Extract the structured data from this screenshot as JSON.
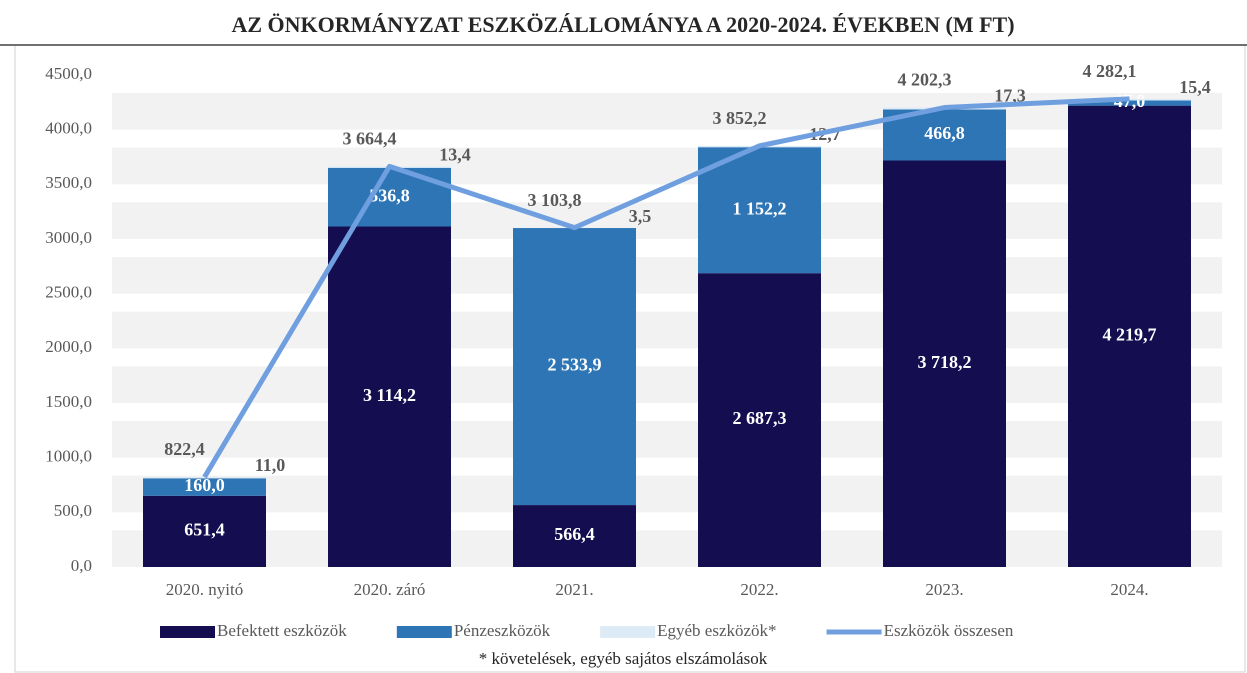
{
  "chart_data": {
    "type": "bar",
    "stacked": true,
    "title": "AZ ÖNKORMÁNYZAT ESZKÖZÁLLOMÁNYA A 2020-2024. ÉVEKBEN (M FT)",
    "categories": [
      "2020. nyitó",
      "2020. záró",
      "2021.",
      "2022.",
      "2023.",
      "2024."
    ],
    "series": [
      {
        "name": "Befektett eszközök",
        "color": "#140d50",
        "values": [
          651.4,
          3114.2,
          566.4,
          2687.3,
          3718.2,
          4219.7
        ],
        "value_labels": [
          "651,4",
          "3 114,2",
          "566,4",
          "2 687,3",
          "3 718,2",
          "4 219,7"
        ]
      },
      {
        "name": "Pénzeszközök",
        "color": "#2e75b6",
        "values": [
          160.0,
          536.8,
          2533.9,
          1152.2,
          466.8,
          47.0
        ],
        "value_labels": [
          "160,0",
          "536,8",
          "2 533,9",
          "1 152,2",
          "466,8",
          "47,0"
        ]
      },
      {
        "name": "Egyéb eszközök*",
        "color": "#ddebf7",
        "values": [
          11.0,
          13.4,
          3.5,
          12.7,
          17.3,
          15.4
        ],
        "value_labels": [
          "11,0",
          "13,4",
          "3,5",
          "12,7",
          "17,3",
          "15,4"
        ]
      },
      {
        "name": "Eszközök összesen",
        "color": "#709fe0",
        "type": "line",
        "values": [
          822.4,
          3664.4,
          3103.8,
          3852.2,
          4202.3,
          4282.1
        ],
        "value_labels": [
          "822,4",
          "3 664,4",
          "3 103,8",
          "3 852,2",
          "4 202,3",
          "4 282,1"
        ]
      }
    ],
    "ylim": [
      0,
      4500
    ],
    "yticks": [
      {
        "value": 0,
        "label": "0,0"
      },
      {
        "value": 500,
        "label": "500,0"
      },
      {
        "value": 1000,
        "label": "1000,0"
      },
      {
        "value": 1500,
        "label": "1500,0"
      },
      {
        "value": 2000,
        "label": "2000,0"
      },
      {
        "value": 2500,
        "label": "2500,0"
      },
      {
        "value": 3000,
        "label": "3000,0"
      },
      {
        "value": 3500,
        "label": "3500,0"
      },
      {
        "value": 4000,
        "label": "4000,0"
      },
      {
        "value": 4500,
        "label": "4500,0"
      }
    ],
    "grid": true,
    "legend": "bottom",
    "footnote": "* követelések, egyéb sajátos elszámolások"
  }
}
